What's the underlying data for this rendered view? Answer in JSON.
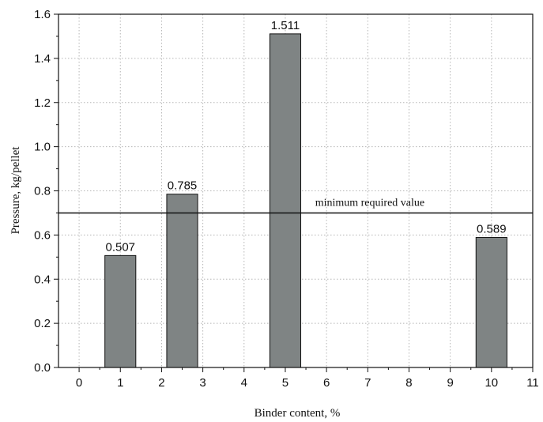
{
  "chart_data": {
    "type": "bar",
    "xlabel": "Binder content, %",
    "ylabel": "Pressure, kg/pellet",
    "xlim": [
      -0.5,
      11
    ],
    "ylim": [
      0,
      1.6
    ],
    "x_ticks": [
      "0",
      "1",
      "2",
      "3",
      "4",
      "5",
      "6",
      "7",
      "8",
      "9",
      "10",
      "11"
    ],
    "y_ticks": [
      "0.0",
      "0.2",
      "0.4",
      "0.6",
      "0.8",
      "1.0",
      "1.2",
      "1.4",
      "1.6"
    ],
    "bars": [
      {
        "x": 1,
        "value": 0.507,
        "label": "0.507"
      },
      {
        "x": 2.5,
        "value": 0.785,
        "label": "0.785"
      },
      {
        "x": 5,
        "value": 1.511,
        "label": "1.511"
      },
      {
        "x": 10,
        "value": 0.589,
        "label": "0.589"
      }
    ],
    "bar_width": 0.75,
    "reference_line": {
      "value": 0.7,
      "label": "minimum required value"
    },
    "grid": true,
    "colors": {
      "bar": "#7f8484",
      "grid": "#b5b5b5",
      "axis": "#111111"
    }
  }
}
